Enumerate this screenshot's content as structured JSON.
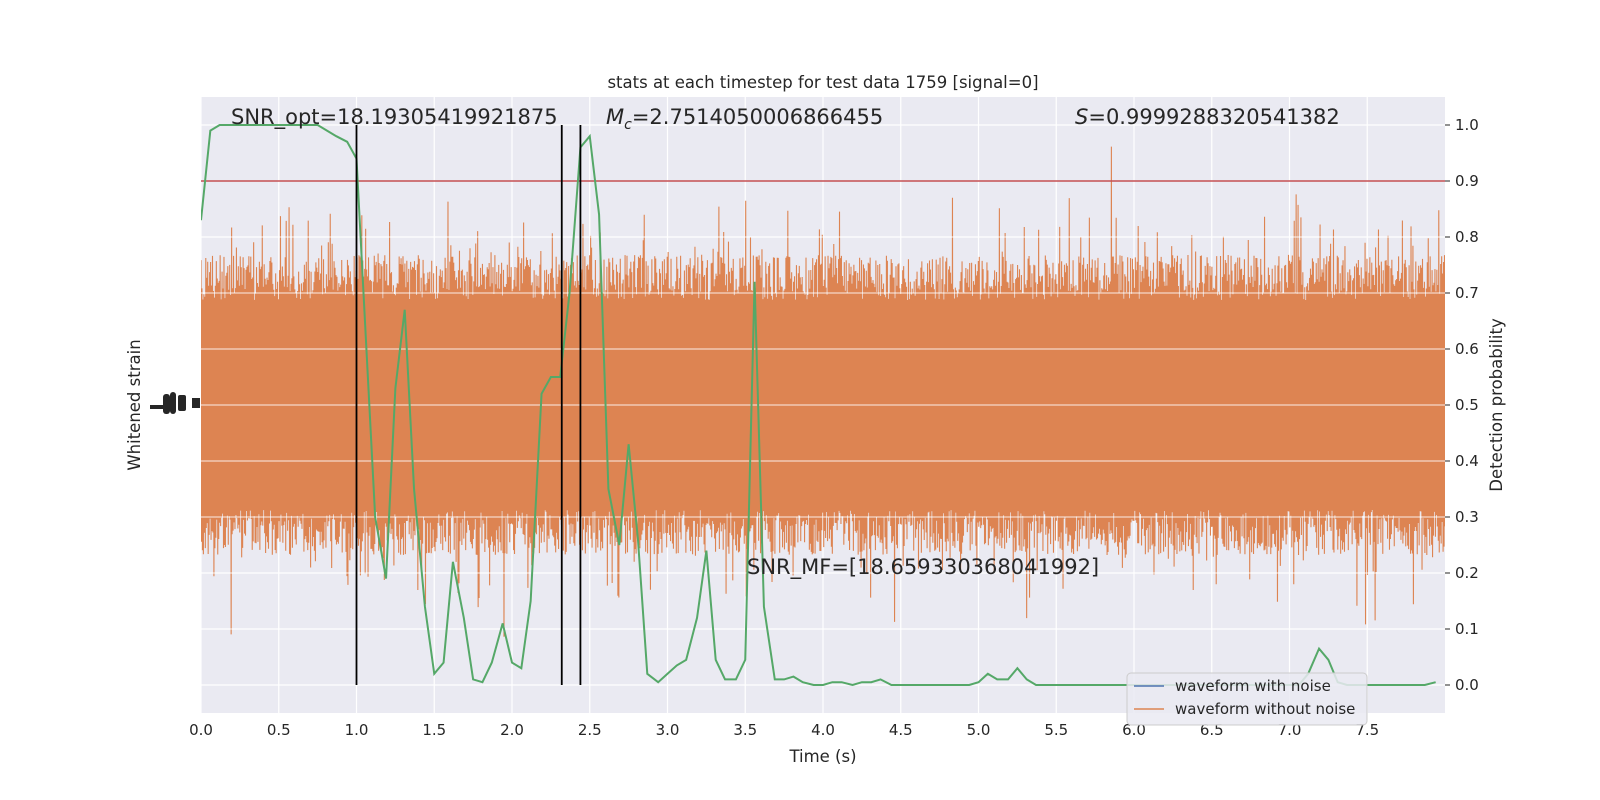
{
  "chart_data": {
    "type": "line",
    "title": "stats at each timestep for test data 1759 [signal=0]",
    "xlabel": "Time (s)",
    "ylabel_left": "Whitened strain",
    "ylabel_right": "Detection probability",
    "xlim": [
      0.0,
      8.0
    ],
    "ylim_right": [
      -0.05,
      1.05
    ],
    "x_ticks": [
      "0.0",
      "0.5",
      "1.0",
      "1.5",
      "2.0",
      "2.5",
      "3.0",
      "3.5",
      "4.0",
      "4.5",
      "5.0",
      "5.5",
      "6.0",
      "6.5",
      "7.0",
      "7.5"
    ],
    "y_ticks_right": [
      "0.0",
      "0.1",
      "0.2",
      "0.3",
      "0.4",
      "0.5",
      "0.6",
      "0.7",
      "0.8",
      "0.9",
      "1.0"
    ],
    "grid": true,
    "legend_location": "lower right",
    "annotations": {
      "snr_opt": "SNR_opt=18.19305419921875",
      "mc_symbol": "M",
      "mc_sub": "c",
      "mc_value": "=2.7514050006866455",
      "s_symbol": "S",
      "s_value": "=0.9999288320541382",
      "snr_mf": "SNR_MF=[18.659330368041992]"
    },
    "threshold": 0.9,
    "vertical_lines_x": [
      1.0,
      2.32,
      2.44
    ],
    "colors": {
      "waveform_with_noise": "#4c72b0",
      "waveform_without_noise": "#dd8452",
      "probability": "#55a868",
      "threshold": "#c44e52",
      "vlines": "#000000",
      "background": "#eaeaf2",
      "grid": "#ffffff"
    },
    "series": [
      {
        "name": "waveform with noise",
        "color": "#4c72b0"
      },
      {
        "name": "waveform without noise",
        "color": "#dd8452"
      }
    ],
    "probability": {
      "x": [
        0.0,
        0.06,
        0.12,
        0.18,
        0.25,
        0.31,
        0.37,
        0.44,
        0.5,
        0.56,
        0.62,
        0.69,
        0.75,
        0.81,
        0.87,
        0.94,
        1.0,
        1.06,
        1.12,
        1.19,
        1.25,
        1.31,
        1.37,
        1.44,
        1.5,
        1.56,
        1.62,
        1.69,
        1.75,
        1.81,
        1.87,
        1.94,
        2.0,
        2.06,
        2.12,
        2.19,
        2.25,
        2.31,
        2.37,
        2.44,
        2.5,
        2.56,
        2.62,
        2.69,
        2.75,
        2.81,
        2.87,
        2.94,
        3.0,
        3.06,
        3.12,
        3.19,
        3.25,
        3.31,
        3.37,
        3.44,
        3.5,
        3.56,
        3.62,
        3.69,
        3.75,
        3.81,
        3.87,
        3.94,
        4.0,
        4.06,
        4.12,
        4.19,
        4.25,
        4.31,
        4.37,
        4.44,
        4.5,
        4.56,
        4.62,
        4.69,
        4.75,
        4.81,
        4.87,
        4.94,
        5.0,
        5.06,
        5.12,
        5.19,
        5.25,
        5.31,
        5.37,
        5.44,
        5.5,
        5.56,
        5.62,
        5.69,
        5.75,
        5.81,
        5.87,
        5.94,
        6.0,
        6.06,
        6.12,
        6.19,
        6.25,
        6.31,
        6.37,
        6.44,
        6.5,
        6.56,
        6.62,
        6.69,
        6.75,
        6.81,
        6.87,
        6.94,
        7.0,
        7.06,
        7.12,
        7.19,
        7.25,
        7.31,
        7.37,
        7.44,
        7.5,
        7.56,
        7.62,
        7.69,
        7.75,
        7.81,
        7.87,
        7.94
      ],
      "y": [
        0.83,
        0.99,
        1.0,
        1.0,
        1.0,
        1.0,
        1.0,
        1.0,
        1.0,
        1.0,
        1.0,
        1.0,
        1.0,
        0.99,
        0.98,
        0.97,
        0.94,
        0.62,
        0.3,
        0.19,
        0.53,
        0.67,
        0.35,
        0.14,
        0.02,
        0.04,
        0.22,
        0.12,
        0.01,
        0.005,
        0.04,
        0.11,
        0.04,
        0.03,
        0.15,
        0.52,
        0.55,
        0.55,
        0.7,
        0.96,
        0.98,
        0.84,
        0.35,
        0.25,
        0.43,
        0.26,
        0.02,
        0.005,
        0.02,
        0.035,
        0.045,
        0.12,
        0.24,
        0.045,
        0.01,
        0.01,
        0.045,
        0.72,
        0.14,
        0.01,
        0.01,
        0.015,
        0.005,
        0.0,
        0.0,
        0.005,
        0.005,
        0.0,
        0.005,
        0.005,
        0.01,
        0.0,
        0.0,
        0.0,
        0.0,
        0.0,
        0.0,
        0.0,
        0.0,
        0.0,
        0.005,
        0.02,
        0.01,
        0.01,
        0.03,
        0.01,
        0.0,
        0.0,
        0.0,
        0.0,
        0.0,
        0.0,
        0.0,
        0.0,
        0.0,
        0.0,
        0.0,
        0.0,
        0.0,
        0.0,
        0.0,
        0.0,
        0.0,
        0.0,
        0.0,
        0.0,
        0.0,
        0.0,
        0.0,
        0.0,
        0.0,
        0.0,
        0.0,
        0.0,
        0.02,
        0.065,
        0.045,
        0.005,
        0.0,
        0.0,
        0.0,
        0.0,
        0.0,
        0.0,
        0.0,
        0.0,
        0.0,
        0.005
      ]
    }
  }
}
